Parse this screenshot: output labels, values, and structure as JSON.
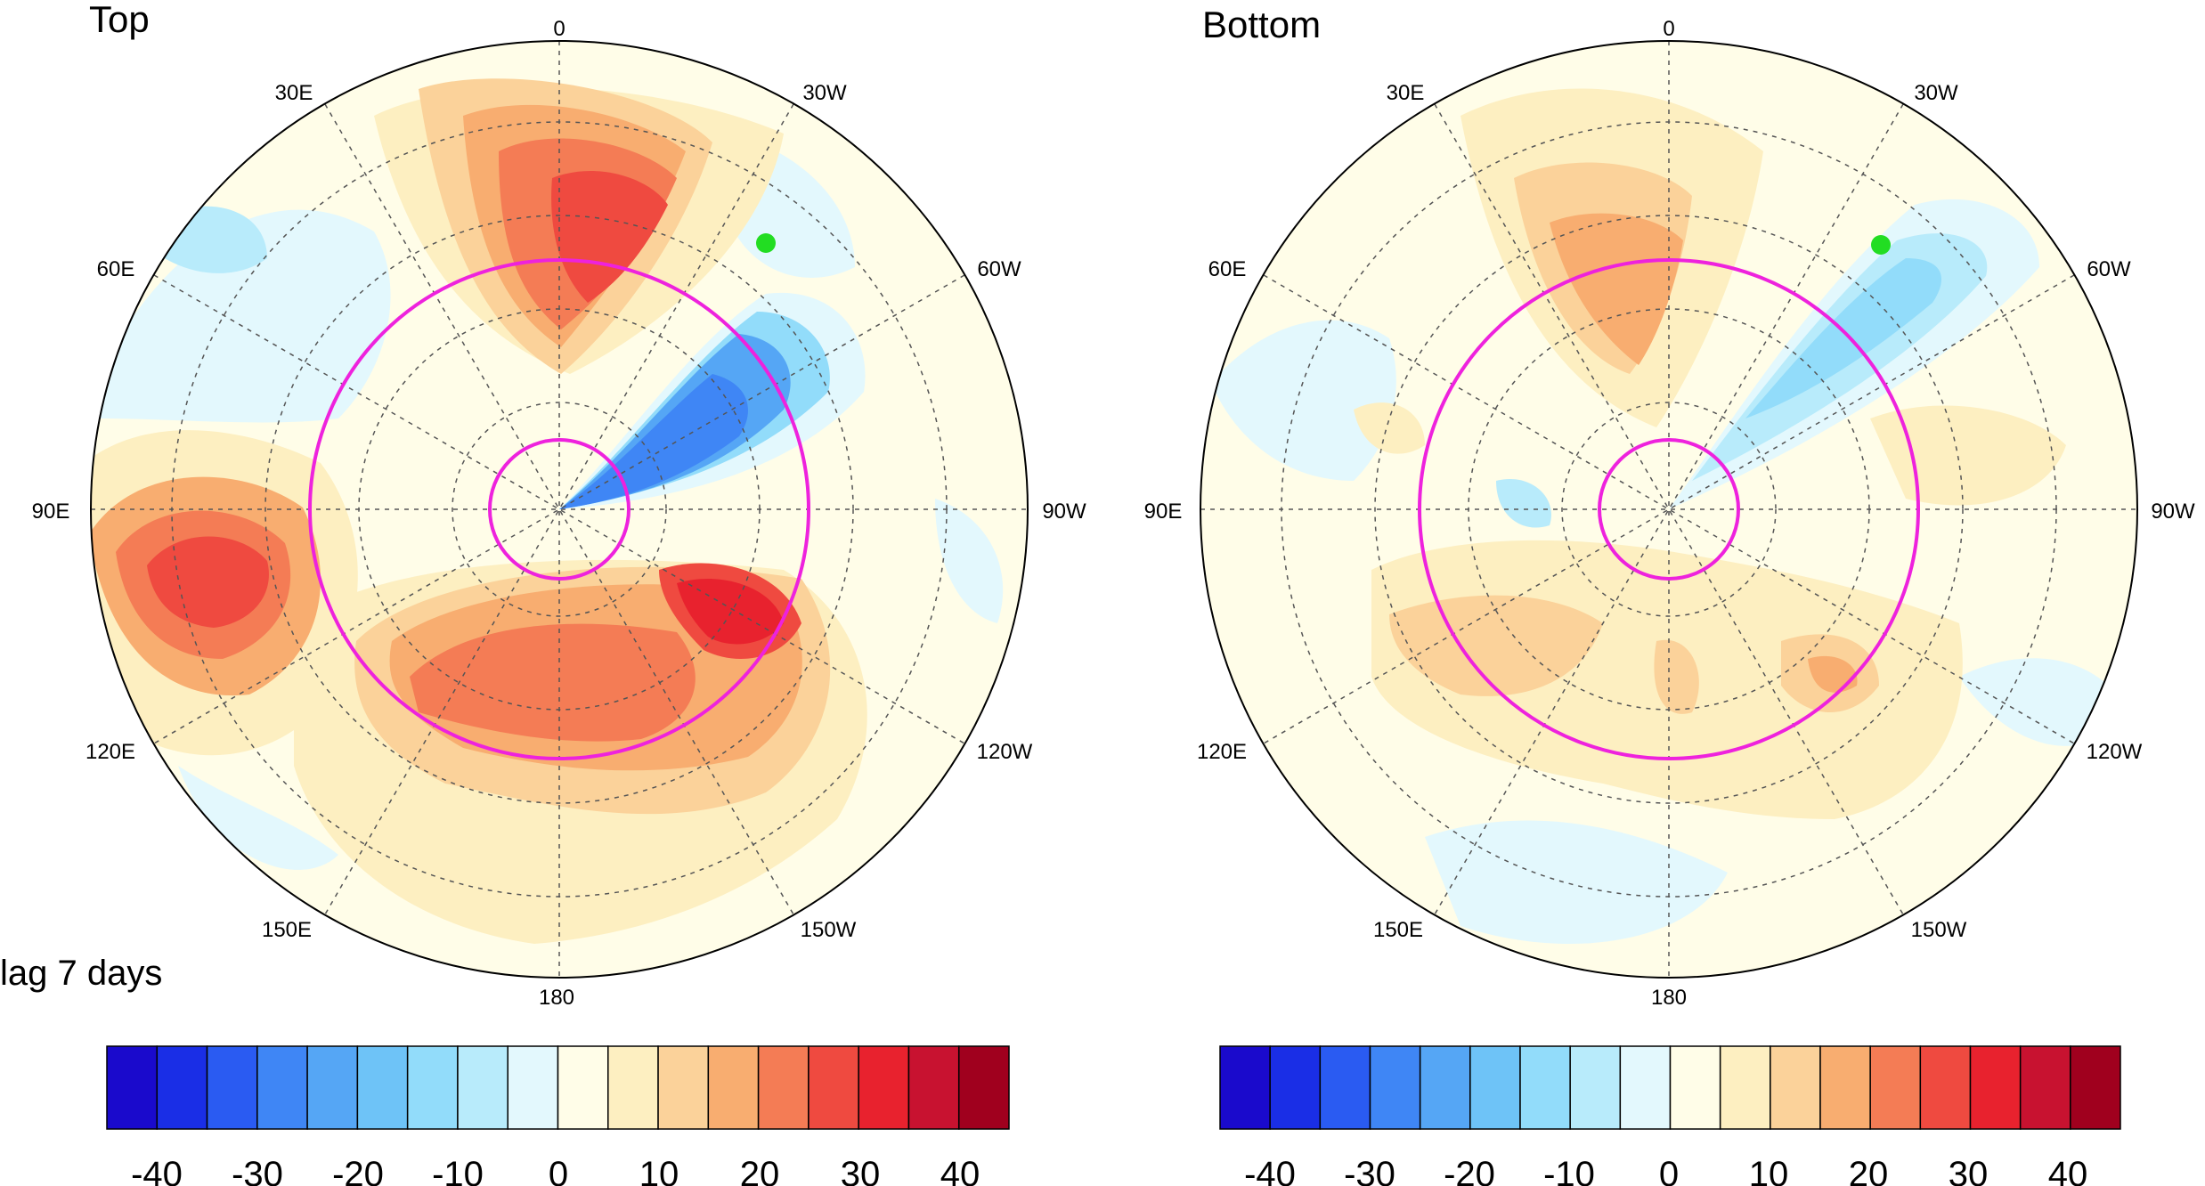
{
  "panels": [
    {
      "title": "Top",
      "caption": "lag 7 days",
      "lon_labels": [
        "0",
        "30W",
        "60W",
        "90W",
        "120W",
        "150W",
        "180",
        "150E",
        "120E",
        "90E",
        "60E",
        "30E"
      ],
      "marker_color": "#22dd22",
      "circle_color": "#ee22dd",
      "colorbar_ticks": [
        "-40",
        "-30",
        "-20",
        "-10",
        "0",
        "10",
        "20",
        "30",
        "40"
      ]
    },
    {
      "title": "Bottom",
      "caption": "",
      "lon_labels": [
        "0",
        "30W",
        "60W",
        "90W",
        "120W",
        "150W",
        "180",
        "150E",
        "120E",
        "90E",
        "60E",
        "30E"
      ],
      "marker_color": "#22dd22",
      "circle_color": "#ee22dd",
      "colorbar_ticks": [
        "-40",
        "-30",
        "-20",
        "-10",
        "0",
        "10",
        "20",
        "30",
        "40"
      ]
    }
  ],
  "colorbar_colors": [
    "#1a0acc",
    "#1a2ee6",
    "#2a5bf2",
    "#3f86f5",
    "#55a6f5",
    "#6ec3f7",
    "#92dcfa",
    "#b8ebfb",
    "#e3f8fd",
    "#fffde8",
    "#fdefc1",
    "#fbd29a",
    "#f8ad70",
    "#f47c55",
    "#ef4a40",
    "#e8222e",
    "#c81230",
    "#a0001e"
  ]
}
